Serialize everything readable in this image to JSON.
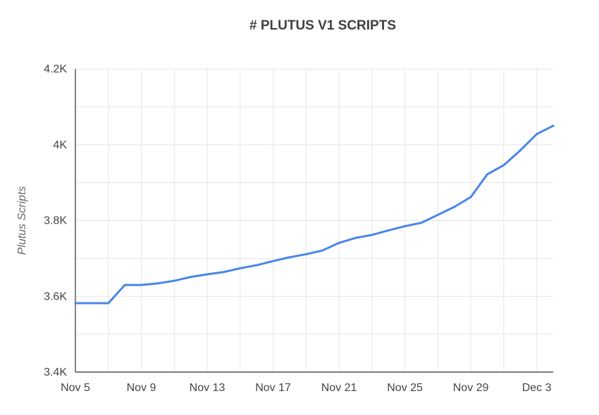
{
  "chart_data": {
    "type": "line",
    "title": "# PLUTUS V1 SCRIPTS",
    "xlabel": "",
    "ylabel": "Plutus Scripts",
    "grid": true,
    "legend": "none",
    "ylim": [
      3400,
      4200
    ],
    "y_ticks": [
      {
        "value": 3400,
        "label": "3.4K"
      },
      {
        "value": 3500,
        "label": ""
      },
      {
        "value": 3600,
        "label": "3.6K"
      },
      {
        "value": 3700,
        "label": ""
      },
      {
        "value": 3800,
        "label": "3.8K"
      },
      {
        "value": 3900,
        "label": ""
      },
      {
        "value": 4000,
        "label": "4K"
      },
      {
        "value": 4100,
        "label": ""
      },
      {
        "value": 4200,
        "label": "4.2K"
      }
    ],
    "x_ticks": [
      "Nov 5",
      "Nov 9",
      "Nov 13",
      "Nov 17",
      "Nov 21",
      "Nov 25",
      "Nov 29",
      "Dec 3"
    ],
    "x_grid": [
      "Nov 5",
      "Nov 7",
      "Nov 9",
      "Nov 11",
      "Nov 13",
      "Nov 15",
      "Nov 17",
      "Nov 19",
      "Nov 21",
      "Nov 23",
      "Nov 25",
      "Nov 27",
      "Nov 29",
      "Dec 1",
      "Dec 3"
    ],
    "x": [
      "Nov 5",
      "Nov 6",
      "Nov 7",
      "Nov 8",
      "Nov 9",
      "Nov 10",
      "Nov 11",
      "Nov 12",
      "Nov 13",
      "Nov 14",
      "Nov 15",
      "Nov 16",
      "Nov 17",
      "Nov 18",
      "Nov 19",
      "Nov 20",
      "Nov 21",
      "Nov 22",
      "Nov 23",
      "Nov 24",
      "Nov 25",
      "Nov 26",
      "Nov 27",
      "Nov 28",
      "Nov 29",
      "Nov 30",
      "Dec 1",
      "Dec 2",
      "Dec 3",
      "Dec 4"
    ],
    "series": [
      {
        "color": "#4a86e8",
        "values": [
          3582,
          3582,
          3582,
          3630,
          3630,
          3634,
          3641,
          3651,
          3658,
          3664,
          3674,
          3682,
          3693,
          3703,
          3711,
          3721,
          3741,
          3754,
          3762,
          3774,
          3785,
          3794,
          3815,
          3836,
          3862,
          3922,
          3946,
          3985,
          4028,
          4050
        ]
      }
    ]
  }
}
